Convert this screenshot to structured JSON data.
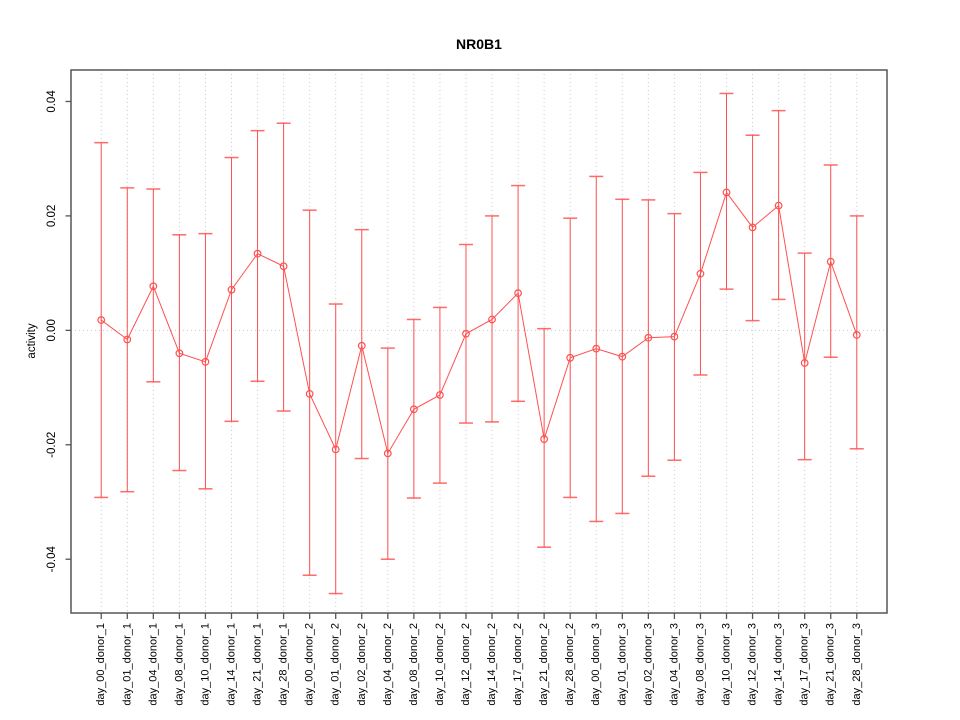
{
  "chart_data": {
    "type": "line",
    "subtype": "points-with-error-bars",
    "title": "NR0B1",
    "xlabel": "",
    "ylabel": "activity",
    "legend_position": "none",
    "ylim": [
      -0.0494,
      0.0455
    ],
    "yticks": [
      -0.04,
      -0.02,
      0,
      0.02,
      0.04
    ],
    "ytick_labels": [
      "-0.04",
      "-0.02",
      "0.00",
      "0.02",
      "0.04"
    ],
    "grid": {
      "vertical_dotted_per_category": true,
      "horizontal_zero_line_dotted": true
    },
    "marker": "open-circle",
    "categories": [
      "day_00_donor_1",
      "day_01_donor_1",
      "day_04_donor_1",
      "day_08_donor_1",
      "day_10_donor_1",
      "day_14_donor_1",
      "day_21_donor_1",
      "day_28_donor_1",
      "day_00_donor_2",
      "day_01_donor_2",
      "day_02_donor_2",
      "day_04_donor_2",
      "day_08_donor_2",
      "day_10_donor_2",
      "day_12_donor_2",
      "day_14_donor_2",
      "day_17_donor_2",
      "day_21_donor_2",
      "day_28_donor_2",
      "day_00_donor_3",
      "day_01_donor_3",
      "day_02_donor_3",
      "day_04_donor_3",
      "day_08_donor_3",
      "day_10_donor_3",
      "day_12_donor_3",
      "day_14_donor_3",
      "day_17_donor_3",
      "day_21_donor_3",
      "day_28_donor_3"
    ],
    "series": [
      {
        "name": "activity",
        "values": [
          0.0018,
          -0.0016,
          0.0077,
          -0.004,
          -0.0055,
          0.0071,
          0.0134,
          0.0112,
          -0.0111,
          -0.0208,
          -0.0027,
          -0.0215,
          -0.0138,
          -0.0113,
          -0.0006,
          0.0019,
          0.0065,
          -0.019,
          -0.0048,
          -0.0032,
          -0.0046,
          -0.0013,
          -0.0011,
          0.0099,
          0.0241,
          0.018,
          0.0218,
          -0.0057,
          0.012,
          -0.0008
        ],
        "lower": [
          -0.0292,
          -0.0282,
          -0.009,
          -0.0245,
          -0.0277,
          -0.0159,
          -0.0089,
          -0.0141,
          -0.0428,
          -0.046,
          -0.0224,
          -0.04,
          -0.0293,
          -0.0267,
          -0.0162,
          -0.016,
          -0.0124,
          -0.0379,
          -0.0292,
          -0.0334,
          -0.032,
          -0.0255,
          -0.0227,
          -0.0078,
          0.0072,
          0.0017,
          0.0054,
          -0.0226,
          -0.0047,
          -0.0207
        ],
        "upper": [
          0.0328,
          0.0249,
          0.0247,
          0.0167,
          0.0169,
          0.0302,
          0.0349,
          0.0362,
          0.021,
          0.0046,
          0.0176,
          -0.0031,
          0.0019,
          0.004,
          0.015,
          0.02,
          0.0253,
          0.0003,
          0.0196,
          0.0269,
          0.0229,
          0.0228,
          0.0204,
          0.0276,
          0.0414,
          0.0341,
          0.0384,
          0.0135,
          0.0289,
          0.02
        ]
      }
    ],
    "colors": {
      "series": "#FF5050",
      "grid": "#CBCBCB",
      "axis": "#555555",
      "text": "#000000",
      "background": "#FFFFFF"
    }
  }
}
